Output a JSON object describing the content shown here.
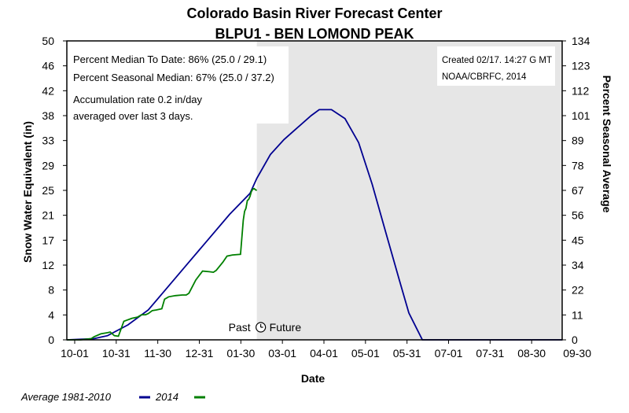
{
  "chart_data": {
    "type": "line",
    "title": "Colorado Basin River Forecast Center",
    "subtitle": "BLPU1 - BEN LOMOND PEAK",
    "xlabel": "Date",
    "ylabel": "Snow Water Equivalent (in)",
    "y2label": "Percent Seasonal Average",
    "ylim": [
      0,
      50
    ],
    "y2lim": [
      0,
      134
    ],
    "x_ticks": [
      "10-01",
      "10-31",
      "11-30",
      "12-31",
      "01-30",
      "03-01",
      "04-01",
      "05-01",
      "05-31",
      "07-01",
      "07-31",
      "08-30",
      "09-30"
    ],
    "y_ticks": [
      "0",
      "4",
      "8",
      "12",
      "17",
      "21",
      "25",
      "29",
      "33",
      "38",
      "42",
      "46",
      "50"
    ],
    "y2_ticks": [
      "0",
      "11",
      "22",
      "34",
      "45",
      "56",
      "67",
      "78",
      "89",
      "101",
      "112",
      "123",
      "134"
    ],
    "x_units": "days since 10-01",
    "grid": false,
    "shaded_future_start_day": 140,
    "divider_label_past": "Past",
    "divider_label_future": "Future",
    "annotations": {
      "left": [
        "Percent Median To Date: 86% (25.0 / 29.1)",
        "Percent Seasonal Median: 67% (25.0 / 37.2)",
        "Accumulation rate 0.2 in/day",
        "averaged over last 3 days."
      ],
      "right": [
        "Created 02/17. 14:27 G MT",
        "NOAA/CBRFC, 2014"
      ]
    },
    "legend_position": "bottom-left",
    "series": [
      {
        "name": "Average 1981-2010",
        "color": "#000090",
        "x": [
          0,
          20,
          30,
          45,
          60,
          75,
          90,
          105,
          120,
          135,
          140,
          150,
          160,
          170,
          180,
          186,
          195,
          205,
          215,
          225,
          235,
          245,
          252,
          258,
          262,
          275,
          290,
          300,
          310,
          320,
          330,
          345,
          360,
          365
        ],
        "y": [
          0,
          0.2,
          0.7,
          2.5,
          5,
          9,
          13,
          17,
          21,
          24.5,
          27,
          31,
          33.5,
          35.5,
          37.5,
          38.5,
          38.5,
          37,
          33,
          26,
          18,
          10,
          4.5,
          1.8,
          0,
          0,
          0,
          0,
          0,
          0,
          0,
          0,
          0,
          0
        ]
      },
      {
        "name": "2014",
        "color": "#008000",
        "x": [
          0,
          10,
          18,
          20,
          25,
          30,
          32,
          35,
          38,
          42,
          48,
          52,
          55,
          58,
          60,
          63,
          66,
          70,
          72,
          75,
          80,
          85,
          88,
          90,
          95,
          100,
          105,
          108,
          110,
          115,
          118,
          122,
          128,
          130,
          131,
          132,
          133,
          134,
          135,
          136,
          137,
          138,
          139,
          140
        ],
        "y": [
          0,
          0,
          0.2,
          0.5,
          1,
          1.2,
          1.3,
          0.7,
          0.6,
          3.1,
          3.6,
          3.8,
          4.2,
          4.2,
          4.4,
          4.9,
          5.0,
          5.2,
          6.8,
          7.2,
          7.4,
          7.5,
          7.5,
          7.8,
          10,
          11.5,
          11.4,
          11.3,
          11.6,
          13,
          14,
          14.2,
          14.3,
          20,
          21.5,
          22,
          23.3,
          23.5,
          24,
          24.8,
          25.2,
          25.3,
          25.1,
          25.0
        ]
      }
    ]
  }
}
